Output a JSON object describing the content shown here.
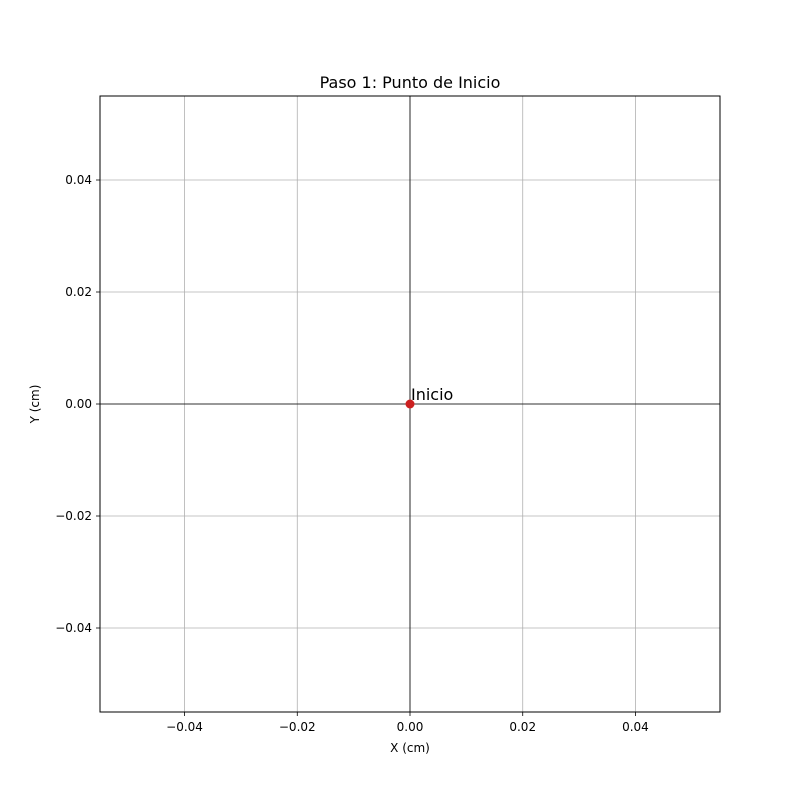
{
  "chart_data": {
    "type": "scatter",
    "title": "Paso 1: Punto de Inicio",
    "xlabel": "X (cm)",
    "ylabel": "Y (cm)",
    "xlim": [
      -0.055,
      0.055
    ],
    "ylim": [
      -0.055,
      0.055
    ],
    "xticks": [
      -0.04,
      -0.02,
      0.0,
      0.02,
      0.04
    ],
    "yticks": [
      -0.04,
      -0.02,
      0.0,
      0.02,
      0.04
    ],
    "xtick_labels": [
      "−0.04",
      "−0.02",
      "0.00",
      "0.02",
      "0.04"
    ],
    "ytick_labels": [
      "−0.04",
      "−0.02",
      "0.00",
      "0.02",
      "0.04"
    ],
    "grid": true,
    "zero_lines": true,
    "points": [
      {
        "x": 0.0,
        "y": 0.0,
        "label": "Inicio",
        "color": "#cc1f1f"
      }
    ],
    "colors": {
      "grid": "#b0b0b0",
      "axis": "#000000",
      "point": "#cc1f1f"
    }
  }
}
